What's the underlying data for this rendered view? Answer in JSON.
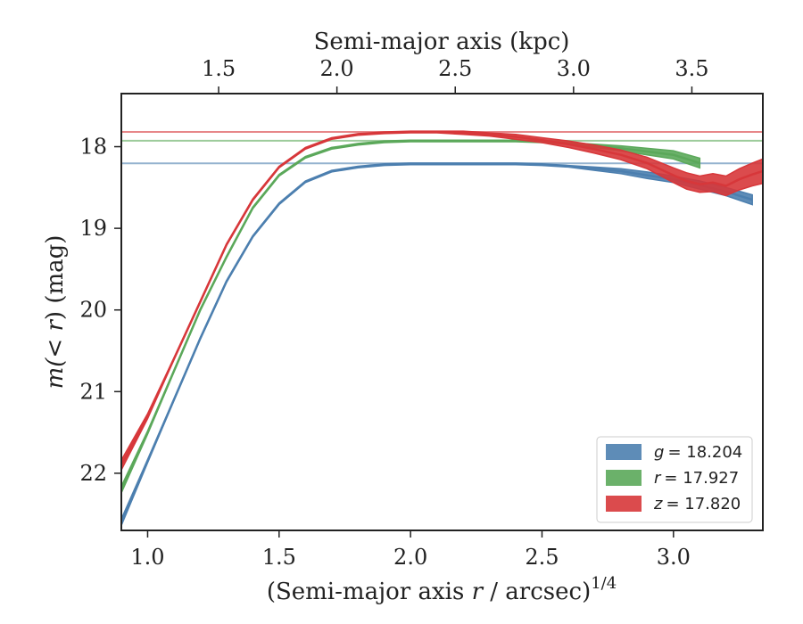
{
  "chart_data": {
    "type": "area",
    "xlabel": "(Semi-major axis r / arcsec)^1/4",
    "xlabel_parts": {
      "pre": "(Semi-major axis ",
      "var": "r",
      "post": " / arcsec)",
      "sup": "1/4"
    },
    "ylabel": "m(<r) (mag)",
    "ylabel_parts": {
      "pre": "m(",
      "var": "< r",
      "post": ") (mag)"
    },
    "top_xlabel": "Semi-major axis (kpc)",
    "xlim": [
      0.9,
      3.34
    ],
    "ylim": [
      22.7,
      17.35
    ],
    "y_inverted": true,
    "x_ticks": [
      1.0,
      1.5,
      2.0,
      2.5,
      3.0
    ],
    "x_tick_labels": [
      "1.0",
      "1.5",
      "2.0",
      "2.5",
      "3.0"
    ],
    "y_ticks": [
      18,
      19,
      20,
      21,
      22
    ],
    "y_tick_labels": [
      "18",
      "19",
      "20",
      "21",
      "22"
    ],
    "top_ticks": [
      {
        "label": "1.5",
        "x": 1.27
      },
      {
        "label": "2.0",
        "x": 1.72
      },
      {
        "label": "2.5",
        "x": 2.17
      },
      {
        "label": "3.0",
        "x": 2.62
      },
      {
        "label": "3.5",
        "x": 3.07
      }
    ],
    "grid": false,
    "legend_position": "lower-right",
    "series": [
      {
        "name": "g = 18.204",
        "legend_var": "g",
        "legend_value": "= 18.204",
        "color": "#4C7FAF",
        "asymptote": 18.204,
        "x": [
          0.9,
          1.0,
          1.1,
          1.2,
          1.3,
          1.4,
          1.5,
          1.6,
          1.7,
          1.8,
          1.9,
          2.0,
          2.1,
          2.2,
          2.3,
          2.4,
          2.5,
          2.6,
          2.7,
          2.8,
          2.9,
          3.0,
          3.1,
          3.2,
          3.3
        ],
        "y": [
          22.6,
          21.85,
          21.1,
          20.35,
          19.65,
          19.1,
          18.7,
          18.43,
          18.3,
          18.25,
          18.22,
          18.21,
          18.21,
          18.21,
          18.21,
          18.21,
          18.22,
          18.24,
          18.27,
          18.3,
          18.35,
          18.4,
          18.47,
          18.55,
          18.65
        ],
        "band_halfwidth": [
          0.04,
          0.02,
          0.01,
          0.01,
          0.01,
          0.01,
          0.01,
          0.01,
          0.01,
          0.01,
          0.01,
          0.01,
          0.01,
          0.01,
          0.01,
          0.01,
          0.01,
          0.01,
          0.02,
          0.03,
          0.04,
          0.04,
          0.05,
          0.05,
          0.06
        ]
      },
      {
        "name": "r = 17.927",
        "legend_var": "r",
        "legend_value": "= 17.927",
        "color": "#5BA85A",
        "asymptote": 17.927,
        "x": [
          0.9,
          1.0,
          1.1,
          1.2,
          1.3,
          1.4,
          1.5,
          1.6,
          1.7,
          1.8,
          1.9,
          2.0,
          2.1,
          2.2,
          2.3,
          2.4,
          2.5,
          2.6,
          2.7,
          2.8,
          2.9,
          3.0,
          3.1
        ],
        "y": [
          22.2,
          21.5,
          20.75,
          20.0,
          19.35,
          18.75,
          18.35,
          18.13,
          18.02,
          17.97,
          17.94,
          17.93,
          17.93,
          17.93,
          17.93,
          17.93,
          17.94,
          17.96,
          17.99,
          18.02,
          18.06,
          18.1,
          18.2
        ],
        "band_halfwidth": [
          0.04,
          0.02,
          0.01,
          0.01,
          0.01,
          0.01,
          0.01,
          0.01,
          0.01,
          0.01,
          0.01,
          0.01,
          0.01,
          0.01,
          0.01,
          0.01,
          0.01,
          0.01,
          0.02,
          0.03,
          0.04,
          0.05,
          0.06
        ]
      },
      {
        "name": "z = 17.820",
        "legend_var": "z",
        "legend_value": "= 17.820",
        "color": "#D7373A",
        "asymptote": 17.82,
        "x": [
          0.9,
          1.0,
          1.1,
          1.2,
          1.3,
          1.4,
          1.5,
          1.6,
          1.7,
          1.8,
          1.9,
          2.0,
          2.1,
          2.2,
          2.3,
          2.4,
          2.5,
          2.6,
          2.7,
          2.8,
          2.9,
          3.0,
          3.05,
          3.1,
          3.15,
          3.2,
          3.25,
          3.3,
          3.34
        ],
        "y": [
          21.9,
          21.3,
          20.6,
          19.9,
          19.2,
          18.65,
          18.25,
          18.02,
          17.9,
          17.85,
          17.83,
          17.82,
          17.82,
          17.83,
          17.85,
          17.88,
          17.92,
          17.97,
          18.03,
          18.1,
          18.2,
          18.35,
          18.42,
          18.46,
          18.44,
          18.48,
          18.4,
          18.34,
          18.3
        ],
        "band_halfwidth": [
          0.06,
          0.03,
          0.01,
          0.01,
          0.01,
          0.01,
          0.01,
          0.01,
          0.01,
          0.01,
          0.01,
          0.01,
          0.01,
          0.02,
          0.02,
          0.03,
          0.03,
          0.04,
          0.05,
          0.06,
          0.07,
          0.09,
          0.1,
          0.1,
          0.11,
          0.12,
          0.13,
          0.14,
          0.15
        ]
      }
    ]
  }
}
